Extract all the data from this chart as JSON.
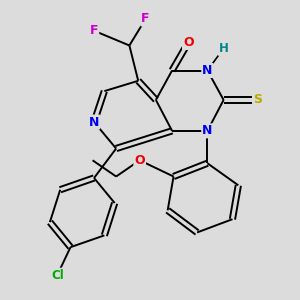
{
  "background_color": "#dcdcdc",
  "atom_colors": {
    "C": "#000000",
    "N": "#0000ee",
    "O": "#ee0000",
    "S": "#bbaa00",
    "F": "#cc00cc",
    "Cl": "#00aa00",
    "H": "#008888"
  },
  "figsize": [
    3.0,
    3.0
  ],
  "dpi": 100
}
